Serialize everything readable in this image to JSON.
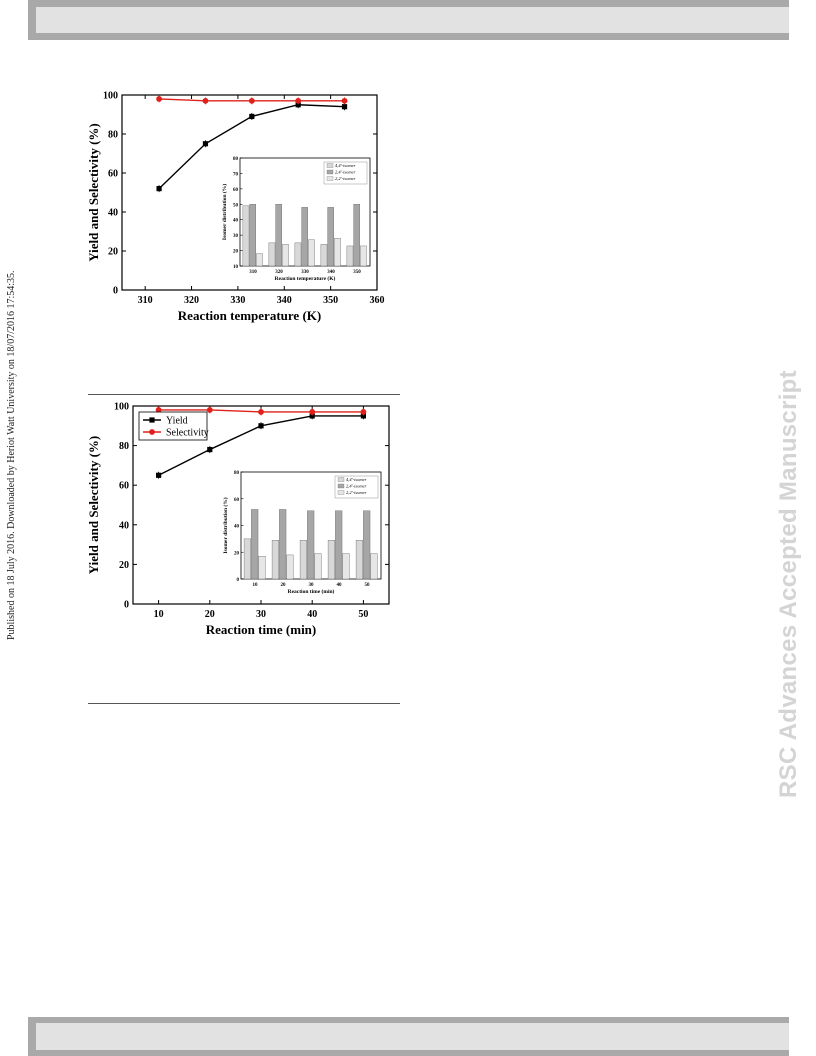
{
  "header_bar": "",
  "side_note": "Published on 18 July 2016. Downloaded by Heriot Watt University on 18/07/2016 17:54:35.",
  "watermark": "RSC Advances Accepted Manuscript",
  "colors": {
    "yield": "#000000",
    "selectivity": "#e0201a",
    "bar1": "#d8d8d8",
    "bar2": "#a6a6a6",
    "bar3": "#e6e6e6"
  },
  "chart_data": [
    {
      "type": "line",
      "xlabel": "Reaction temperature (K)",
      "ylabel": "Yield and Selectivity (%)",
      "xlim": [
        305,
        360
      ],
      "ylim": [
        0,
        100
      ],
      "xticks": [
        "310",
        "320",
        "330",
        "340",
        "350",
        "360"
      ],
      "yticks": [
        "0",
        "20",
        "40",
        "60",
        "80",
        "100"
      ],
      "x": [
        313,
        323,
        333,
        343,
        353
      ],
      "series": [
        {
          "values": [
            52,
            75,
            89,
            95,
            94
          ]
        },
        {
          "values": [
            98,
            97,
            97,
            97,
            97
          ]
        }
      ],
      "inset": {
        "type": "bar",
        "xlabel": "Reaction temperature (K)",
        "ylabel": "Isomer distribution (%)",
        "ylim": [
          10,
          80
        ],
        "yticks": [
          "10",
          "20",
          "30",
          "40",
          "50",
          "60",
          "70",
          "80"
        ],
        "categories": [
          "310",
          "320",
          "330",
          "340",
          "350"
        ],
        "series": [
          {
            "name": "4,4'-isomer",
            "values": [
              49,
              25,
              25,
              24,
              23
            ]
          },
          {
            "name": "2,4'-isomer",
            "values": [
              50,
              50,
              48,
              48,
              50
            ]
          },
          {
            "name": "2,2'-isomer",
            "values": [
              18,
              24,
              27,
              28,
              23
            ]
          }
        ]
      }
    },
    {
      "type": "line",
      "xlabel": "Reaction time (min)",
      "ylabel": "Yield and Selectivity (%)",
      "xlim": [
        5,
        55
      ],
      "ylim": [
        0,
        100
      ],
      "xticks": [
        "10",
        "20",
        "30",
        "40",
        "50"
      ],
      "yticks": [
        "0",
        "20",
        "40",
        "60",
        "80",
        "100"
      ],
      "x": [
        10,
        20,
        30,
        40,
        50
      ],
      "legend": "top-left",
      "series": [
        {
          "name": "Yield",
          "values": [
            65,
            78,
            90,
            95,
            95
          ]
        },
        {
          "name": "Selectivity",
          "values": [
            98,
            98,
            97,
            97,
            97
          ]
        }
      ],
      "inset": {
        "type": "bar",
        "xlabel": "Reaction time (min)",
        "ylabel": "Isomer distribution (%)",
        "ylim": [
          0,
          80
        ],
        "yticks": [
          "0",
          "20",
          "40",
          "60",
          "80"
        ],
        "categories": [
          "10",
          "20",
          "30",
          "40",
          "50"
        ],
        "series": [
          {
            "name": "4,4'-isomer",
            "values": [
              30,
              29,
              29,
              29,
              29
            ]
          },
          {
            "name": "2,4'-isomer",
            "values": [
              52,
              52,
              51,
              51,
              51
            ]
          },
          {
            "name": "2,2'-isomer",
            "values": [
              17,
              18,
              19,
              19,
              19
            ]
          }
        ]
      }
    }
  ]
}
